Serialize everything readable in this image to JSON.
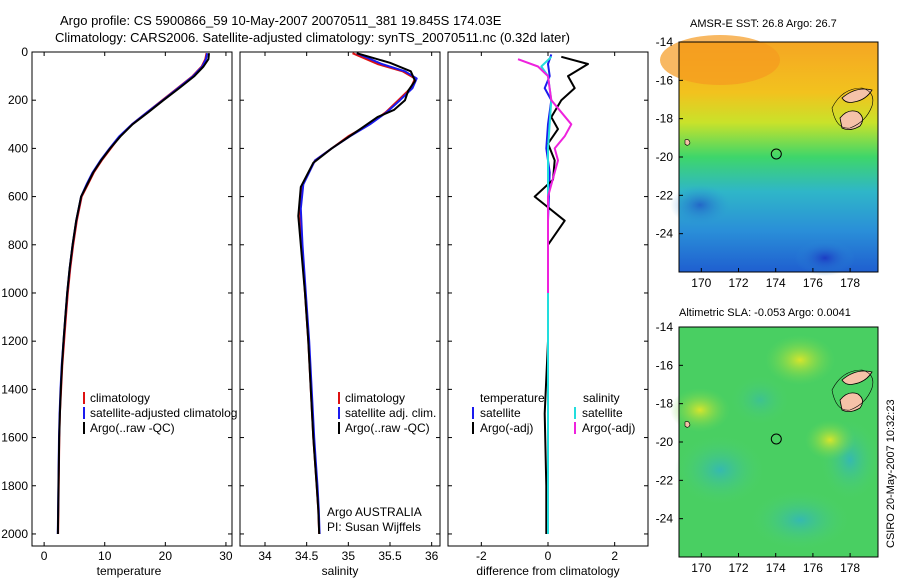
{
  "title": {
    "line1": "Argo profile: CS 5900866_59 10-May-2007 20070511_381 19.845S 174.03E",
    "line2": "Climatology: CARS2006. Satellite-adjusted climatology: synTS_20070511.nc (0.32d later)"
  },
  "colors": {
    "clim": "#dd1111",
    "sat": "#1a1aee",
    "argo": "#000000",
    "sat_cyan": "#22dddd",
    "argo_mag": "#ee22dd"
  },
  "chart_data": [
    {
      "type": "line",
      "name": "temperature",
      "xlabel": "temperature",
      "xlim": [
        -2,
        31
      ],
      "ylim": [
        2050,
        0
      ],
      "xticks": [
        0,
        10,
        20,
        30
      ],
      "yticks": [
        0,
        200,
        400,
        600,
        800,
        1000,
        1200,
        1400,
        1600,
        1800,
        2000
      ],
      "legend": {
        "position": "lower-right",
        "entries": [
          "climatology",
          "satellite-adjusted climatolog",
          "Argo(..raw -QC)"
        ]
      },
      "series": [
        {
          "name": "climatology",
          "color": "#dd1111",
          "x": [
            26.8,
            26.6,
            26.0,
            24.5,
            22.0,
            19.5,
            17.0,
            14.5,
            12.5,
            11.0,
            9.5,
            8.2,
            7.2,
            6.2,
            5.4,
            4.8,
            4.3,
            3.9,
            3.6,
            3.3,
            3.0,
            2.8,
            2.6,
            2.5,
            2.4,
            2.3
          ],
          "y": [
            5,
            30,
            60,
            100,
            150,
            200,
            250,
            300,
            350,
            400,
            450,
            500,
            550,
            600,
            700,
            800,
            900,
            1000,
            1100,
            1200,
            1300,
            1400,
            1500,
            1600,
            1800,
            2000
          ]
        },
        {
          "name": "satellite-adjusted climatology",
          "color": "#1a1aee",
          "x": [
            26.9,
            26.7,
            26.1,
            24.6,
            22.1,
            19.6,
            17.0,
            14.5,
            12.4,
            10.8,
            9.3,
            8.0,
            7.0,
            6.1,
            5.3,
            4.7,
            4.2,
            3.8,
            3.5,
            3.2,
            2.9,
            2.7,
            2.55,
            2.45,
            2.35,
            2.25
          ],
          "y": [
            5,
            30,
            60,
            100,
            150,
            200,
            250,
            300,
            350,
            400,
            450,
            500,
            550,
            600,
            700,
            800,
            900,
            1000,
            1100,
            1200,
            1300,
            1400,
            1500,
            1600,
            1800,
            2000
          ]
        },
        {
          "name": "Argo(..raw -QC)",
          "color": "#000000",
          "x": [
            27.2,
            27.1,
            26.3,
            24.8,
            22.3,
            19.7,
            17.2,
            14.6,
            12.6,
            10.9,
            9.4,
            8.1,
            7.1,
            6.1,
            5.3,
            4.7,
            4.2,
            3.8,
            3.5,
            3.2,
            2.95,
            2.75,
            2.6,
            2.48,
            2.38,
            2.28
          ],
          "y": [
            5,
            30,
            60,
            100,
            150,
            200,
            250,
            300,
            350,
            400,
            450,
            500,
            550,
            600,
            700,
            800,
            900,
            1000,
            1100,
            1200,
            1300,
            1400,
            1500,
            1600,
            1800,
            2000
          ]
        }
      ]
    },
    {
      "type": "line",
      "name": "salinity",
      "xlabel": "salinity",
      "xlim": [
        33.7,
        36.1
      ],
      "ylim": [
        2050,
        0
      ],
      "xticks": [
        34,
        34.5,
        35,
        35.5,
        36
      ],
      "legend": {
        "position": "lower-right",
        "entries": [
          "climatology",
          "satellite adj. clim.",
          "Argo(..raw -QC)"
        ]
      },
      "annotation": {
        "line1": "Argo AUSTRALIA",
        "line2": "PI: Susan Wijffels"
      },
      "series": [
        {
          "name": "climatology",
          "color": "#dd1111",
          "x": [
            35.05,
            35.35,
            35.65,
            35.8,
            35.75,
            35.6,
            35.45,
            35.25,
            35.0,
            34.8,
            34.6,
            34.45,
            34.42,
            34.44,
            34.48,
            34.52,
            34.55,
            34.58,
            34.6,
            34.62,
            34.64,
            34.65
          ],
          "y": [
            5,
            50,
            80,
            110,
            150,
            200,
            250,
            300,
            350,
            400,
            450,
            550,
            650,
            800,
            1000,
            1200,
            1400,
            1600,
            1700,
            1800,
            1900,
            2000
          ]
        },
        {
          "name": "satellite adj. clim.",
          "color": "#1a1aee",
          "x": [
            35.1,
            35.4,
            35.68,
            35.82,
            35.77,
            35.62,
            35.46,
            35.26,
            35.02,
            34.8,
            34.6,
            34.46,
            34.43,
            34.45,
            34.49,
            34.53,
            34.56,
            34.59,
            34.61,
            34.63,
            34.645,
            34.655
          ],
          "y": [
            5,
            50,
            80,
            110,
            150,
            200,
            250,
            300,
            350,
            400,
            450,
            550,
            650,
            800,
            1000,
            1200,
            1400,
            1600,
            1700,
            1800,
            1900,
            2000
          ]
        },
        {
          "name": "Argo(..raw -QC)",
          "color": "#000000",
          "x": [
            35.1,
            35.5,
            35.75,
            35.8,
            35.72,
            35.68,
            35.55,
            35.35,
            35.1,
            34.8,
            34.58,
            34.43,
            34.4,
            34.43,
            34.48,
            34.52,
            34.55,
            34.58,
            34.6,
            34.62,
            34.64,
            34.65
          ],
          "y": [
            5,
            45,
            80,
            120,
            160,
            200,
            240,
            270,
            330,
            400,
            460,
            560,
            680,
            800,
            1000,
            1200,
            1400,
            1600,
            1700,
            1800,
            1900,
            2000
          ]
        }
      ]
    },
    {
      "type": "line",
      "name": "difference",
      "xlabel": "difference from climatology",
      "xlim": [
        -3,
        3
      ],
      "ylim": [
        2050,
        0
      ],
      "xticks": [
        -2,
        0,
        2
      ],
      "legend": {
        "position": "lower-center",
        "col1_header": "temperature",
        "col2_header": "salinity",
        "entries": [
          "satellite",
          "Argo(-adj)",
          "satellite",
          "Argo(-adj)"
        ]
      },
      "series": [
        {
          "name": "temperature satellite",
          "color": "#1a1aee",
          "x": [
            0.1,
            0.0,
            0.05,
            -0.1,
            0.1,
            0.0,
            -0.05,
            0.05,
            0.0,
            0.0,
            0.0,
            0.0
          ],
          "y": [
            10,
            50,
            100,
            150,
            200,
            300,
            400,
            500,
            700,
            1000,
            1500,
            2000
          ]
        },
        {
          "name": "temperature Argo(-adj)",
          "color": "#000000",
          "x": [
            0.4,
            1.2,
            0.6,
            0.8,
            0.4,
            0.1,
            0.3,
            0.0,
            0.2,
            0.15,
            -0.4,
            0.5,
            0.0,
            0.0,
            0.0,
            0.0,
            0.0,
            -0.1,
            -0.05,
            -0.05
          ],
          "y": [
            20,
            50,
            100,
            150,
            200,
            270,
            320,
            380,
            450,
            530,
            600,
            700,
            800,
            900,
            1000,
            1100,
            1200,
            1500,
            1800,
            2000
          ]
        },
        {
          "name": "salinity satellite",
          "color": "#22dddd",
          "x": [
            0.1,
            -0.2,
            0.0,
            0.1,
            0.0,
            0.0,
            0.0,
            0.0,
            0.0
          ],
          "y": [
            20,
            60,
            100,
            200,
            400,
            700,
            1000,
            1500,
            2000
          ]
        },
        {
          "name": "salinity Argo(-adj)",
          "color": "#ee22dd",
          "x": [
            -0.9,
            -0.3,
            0.0,
            0.1,
            0.7,
            0.5,
            0.2,
            0.3,
            0.0,
            0.0,
            0.0
          ],
          "y": [
            30,
            60,
            100,
            200,
            300,
            350,
            400,
            450,
            600,
            800,
            1000
          ]
        }
      ]
    }
  ],
  "maps": [
    {
      "name": "sst-map",
      "title": "AMSR-E SST: 26.8  Argo: 26.7",
      "xticks": [
        "170",
        "172",
        "174",
        "176",
        "178"
      ],
      "yticks": [
        "-14",
        "-16",
        "-18",
        "-20",
        "-22",
        "-24"
      ],
      "lon_range": [
        168.8,
        179.5
      ],
      "lat_range": [
        -26,
        -14
      ],
      "marker": {
        "lon": 174.03,
        "lat": -19.845
      }
    },
    {
      "name": "sla-map",
      "title": "Altimetric SLA: -0.053  Argo: 0.0041",
      "xticks": [
        "170",
        "172",
        "174",
        "176",
        "178"
      ],
      "yticks": [
        "-14",
        "-16",
        "-18",
        "-20",
        "-22",
        "-24"
      ],
      "lon_range": [
        168.8,
        179.5
      ],
      "lat_range": [
        -26,
        -14
      ],
      "marker": {
        "lon": 174.03,
        "lat": -19.845
      }
    }
  ],
  "side_label": "CSIRO 20-May-2007 10:32:23"
}
